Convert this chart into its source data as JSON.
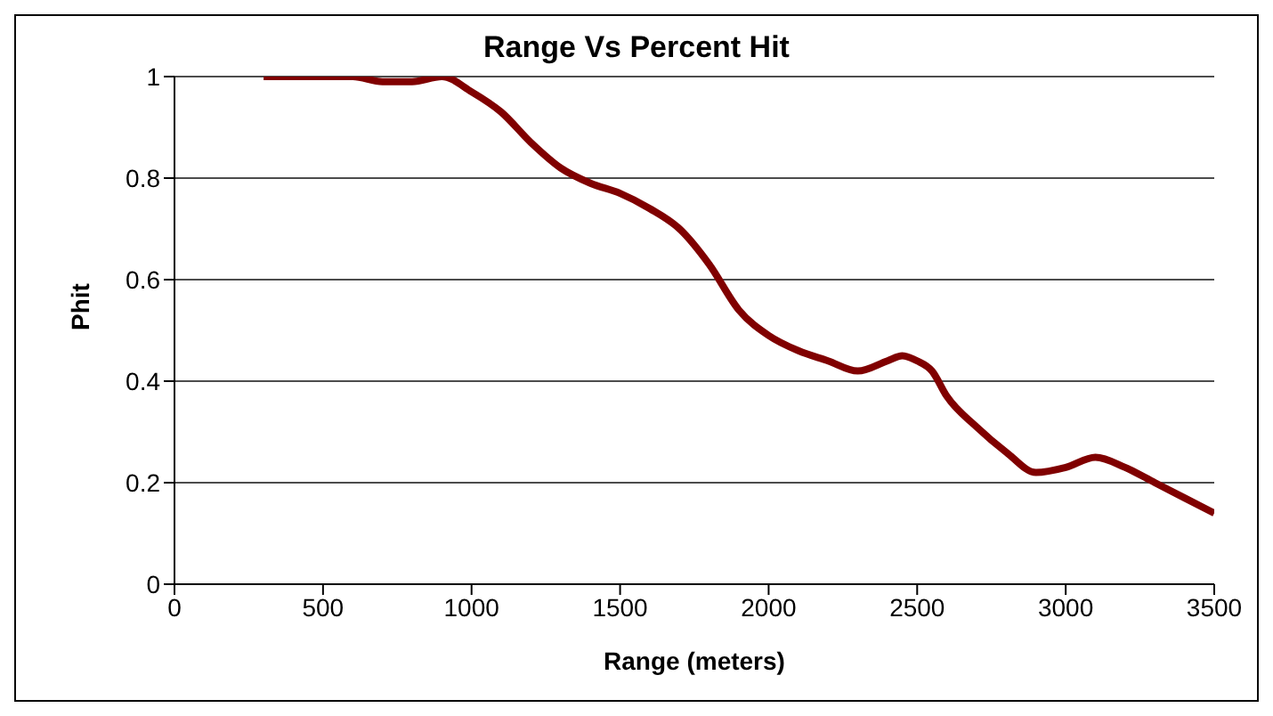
{
  "chart_data": {
    "type": "line",
    "title": "Range Vs Percent Hit",
    "xlabel": "Range (meters)",
    "ylabel": "Phit",
    "x": [
      300,
      400,
      500,
      600,
      700,
      800,
      900,
      1000,
      1100,
      1200,
      1300,
      1400,
      1500,
      1600,
      1700,
      1800,
      1900,
      2000,
      2100,
      2200,
      2300,
      2400,
      2450,
      2500,
      2550,
      2600,
      2700,
      2800,
      2900,
      3000,
      3100,
      3200,
      3300,
      3400,
      3500
    ],
    "series": [
      {
        "color": "#800000",
        "values": [
          1,
          1,
          1,
          1,
          0.99,
          0.99,
          1,
          0.97,
          0.93,
          0.87,
          0.82,
          0.79,
          0.77,
          0.74,
          0.7,
          0.63,
          0.54,
          0.49,
          0.46,
          0.44,
          0.42,
          0.44,
          0.45,
          0.44,
          0.42,
          0.37,
          0.31,
          0.26,
          0.22,
          0.23,
          0.25,
          0.23,
          0.2,
          0.17,
          0.14
        ]
      }
    ],
    "xlim": [
      0,
      3500
    ],
    "xticks": [
      0,
      500,
      1000,
      1500,
      2000,
      2500,
      3000,
      3500
    ],
    "ylim": [
      0,
      1
    ],
    "yticks": [
      0,
      0.2,
      0.4,
      0.6,
      0.8,
      1
    ],
    "grid": "y",
    "marker": "none",
    "line_style": "solid"
  }
}
